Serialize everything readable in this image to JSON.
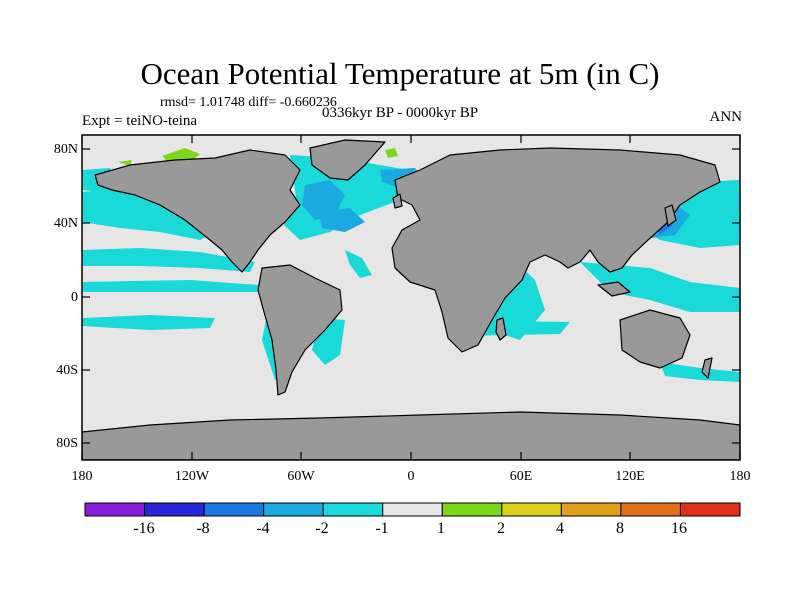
{
  "title": "Ocean Potential Temperature at 5m (in C)",
  "stats": "rmsd= 1.01748  diff= -0.660236",
  "experiment": "Expt = teiNO-teina",
  "period": "0336kyr BP - 0000kyr BP",
  "season": "ANN",
  "y_axis": {
    "labels": [
      "80N",
      "40N",
      "0",
      "40S",
      "80S"
    ]
  },
  "x_axis": {
    "labels": [
      "180",
      "120W",
      "60W",
      "0",
      "60E",
      "120E",
      "180"
    ]
  },
  "colorbar": {
    "colors": [
      "#8a1bd9",
      "#2a24d9",
      "#1a78e0",
      "#1aaae0",
      "#1ad9d9",
      "#e6e6e6",
      "#7ed61a",
      "#d9d11a",
      "#e0a01a",
      "#e0701a",
      "#e0301a"
    ],
    "labels": [
      "-16",
      "-8",
      "-4",
      "-2",
      "-1",
      "1",
      "2",
      "4",
      "8",
      "16"
    ]
  },
  "colors": {
    "land": "#999999",
    "ocean_neutral": "#e6e6e6",
    "cool": "#1ad9d9",
    "cooler": "#1aaae0",
    "coolest": "#1a78e0",
    "warm": "#7ed61a"
  }
}
